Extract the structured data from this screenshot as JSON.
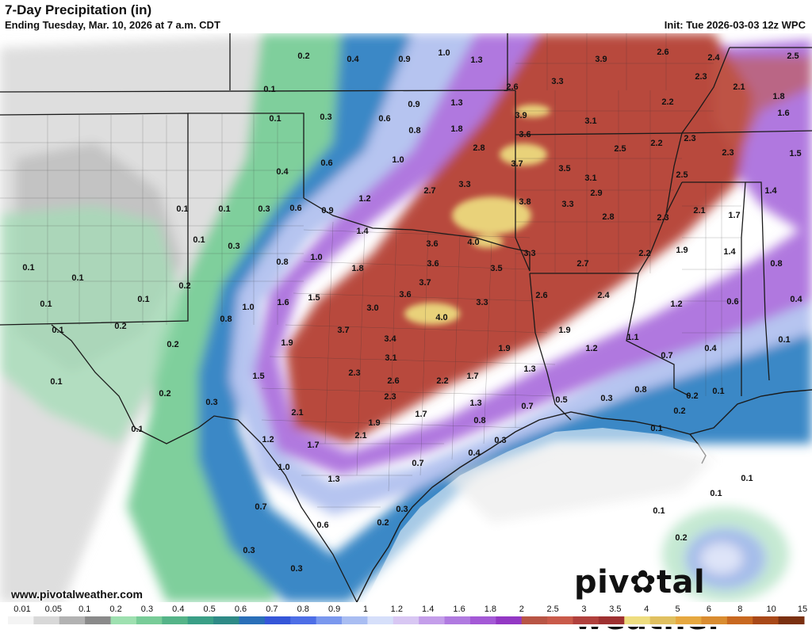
{
  "header": {
    "title": "7-Day Precipitation (in)",
    "subtitle": "Ending Tuesday, Mar. 10, 2026 at 7 a.m. CDT",
    "init": "Init: Tue 2026-03-03 12z WPC"
  },
  "footer": {
    "url": "www.pivotalweather.com",
    "brand_left": "piv",
    "brand_right": "tal weather"
  },
  "legend": {
    "ticks": [
      "0.01",
      "0.05",
      "0.1",
      "0.2",
      "0.3",
      "0.4",
      "0.5",
      "0.6",
      "0.7",
      "0.8",
      "0.9",
      "1",
      "1.2",
      "1.4",
      "1.6",
      "1.8",
      "2",
      "2.5",
      "3",
      "3.5",
      "4",
      "5",
      "6",
      "8",
      "10",
      "15"
    ],
    "colors": [
      "#f4f4f4",
      "#d8d8d8",
      "#b2b2b2",
      "#8a8a8a",
      "#9ee0b0",
      "#78cc98",
      "#55b488",
      "#3a9f86",
      "#2e8a86",
      "#2a6fb8",
      "#3556d8",
      "#4d6ee6",
      "#7a98ee",
      "#a9bdf2",
      "#d6dffa",
      "#d8c7f3",
      "#c49eea",
      "#b07ae0",
      "#a459d6",
      "#9338c4",
      "#b85545",
      "#c95a4a",
      "#b0403c",
      "#9e3030",
      "#eedd80",
      "#e0c060",
      "#e6a840",
      "#d98c30",
      "#c86820",
      "#a84818",
      "#7a3010"
    ]
  },
  "map_labels": [
    {
      "v": "0.2"
    },
    {
      "v": "0.4"
    },
    {
      "v": "0.9"
    },
    {
      "v": "1.0"
    },
    {
      "v": "1.3"
    },
    {
      "v": "3.9"
    },
    {
      "v": "2.6"
    },
    {
      "v": "2.4"
    },
    {
      "v": "2.5"
    },
    {
      "v": "0.1"
    },
    {
      "v": "2.6"
    },
    {
      "v": "3.3"
    },
    {
      "v": "2.3"
    },
    {
      "v": "2.1"
    },
    {
      "v": "1.8"
    },
    {
      "v": "0.1"
    },
    {
      "v": "0.3"
    },
    {
      "v": "0.6"
    },
    {
      "v": "0.9"
    },
    {
      "v": "1.3"
    },
    {
      "v": "3.9"
    },
    {
      "v": "3.1"
    },
    {
      "v": "2.2"
    },
    {
      "v": "1.6"
    },
    {
      "v": "0.8"
    },
    {
      "v": "1.8"
    },
    {
      "v": "3.6"
    },
    {
      "v": "2.3"
    },
    {
      "v": "2.8"
    },
    {
      "v": "2.5"
    },
    {
      "v": "2.2"
    },
    {
      "v": "2.3"
    },
    {
      "v": "1.5"
    },
    {
      "v": "0.6"
    },
    {
      "v": "1.0"
    },
    {
      "v": "3.7"
    },
    {
      "v": "3.5"
    },
    {
      "v": "0.4"
    },
    {
      "v": "3.1"
    },
    {
      "v": "2.5"
    },
    {
      "v": "2.7"
    },
    {
      "v": "3.3"
    },
    {
      "v": "2.9"
    },
    {
      "v": "1.4"
    },
    {
      "v": "1.2"
    },
    {
      "v": "3.8"
    },
    {
      "v": "3.3"
    },
    {
      "v": "0.1"
    },
    {
      "v": "0.1"
    },
    {
      "v": "0.3"
    },
    {
      "v": "0.6"
    },
    {
      "v": "0.9"
    },
    {
      "v": "2.8"
    },
    {
      "v": "2.3"
    },
    {
      "v": "2.1"
    },
    {
      "v": "1.7"
    },
    {
      "v": "1.4"
    },
    {
      "v": "0.1"
    },
    {
      "v": "0.3"
    },
    {
      "v": "3.6"
    },
    {
      "v": "4.0"
    },
    {
      "v": "1.9"
    },
    {
      "v": "1.4"
    },
    {
      "v": "3.3"
    },
    {
      "v": "2.2"
    },
    {
      "v": "0.8"
    },
    {
      "v": "1.0"
    },
    {
      "v": "3.6"
    },
    {
      "v": "2.7"
    },
    {
      "v": "0.8"
    },
    {
      "v": "0.1"
    },
    {
      "v": "1.8"
    },
    {
      "v": "3.5"
    },
    {
      "v": "0.1"
    },
    {
      "v": "0.2"
    },
    {
      "v": "3.7"
    },
    {
      "v": "0.1"
    },
    {
      "v": "1.6"
    },
    {
      "v": "1.5"
    },
    {
      "v": "3.6"
    },
    {
      "v": "2.6"
    },
    {
      "v": "2.4"
    },
    {
      "v": "0.1"
    },
    {
      "v": "3.3"
    },
    {
      "v": "1.2"
    },
    {
      "v": "0.6"
    },
    {
      "v": "0.4"
    },
    {
      "v": "1.0"
    },
    {
      "v": "3.0"
    },
    {
      "v": "0.8"
    },
    {
      "v": "4.0"
    },
    {
      "v": "0.1"
    },
    {
      "v": "0.2"
    },
    {
      "v": "3.7"
    },
    {
      "v": "1.9"
    },
    {
      "v": "3.4"
    },
    {
      "v": "1.1"
    },
    {
      "v": "0.1"
    },
    {
      "v": "0.2"
    },
    {
      "v": "1.9"
    },
    {
      "v": "1.9"
    },
    {
      "v": "1.2"
    },
    {
      "v": "0.4"
    },
    {
      "v": "3.1"
    },
    {
      "v": "0.7"
    },
    {
      "v": "1.3"
    },
    {
      "v": "0.1"
    },
    {
      "v": "1.5"
    },
    {
      "v": "2.3"
    },
    {
      "v": "1.7"
    },
    {
      "v": "2.6"
    },
    {
      "v": "2.2"
    },
    {
      "v": "0.2"
    },
    {
      "v": "0.8"
    },
    {
      "v": "0.2"
    },
    {
      "v": "0.1"
    },
    {
      "v": "0.3"
    },
    {
      "v": "2.3"
    },
    {
      "v": "1.3"
    },
    {
      "v": "0.5"
    },
    {
      "v": "0.3"
    },
    {
      "v": "0.7"
    },
    {
      "v": "0.2"
    },
    {
      "v": "2.1"
    },
    {
      "v": "1.7"
    },
    {
      "v": "1.9"
    },
    {
      "v": "0.8"
    },
    {
      "v": "0.1"
    },
    {
      "v": "2.1"
    },
    {
      "v": "0.3"
    },
    {
      "v": "0.1"
    },
    {
      "v": "1.2"
    },
    {
      "v": "1.7"
    },
    {
      "v": "0.4"
    },
    {
      "v": "1.0"
    },
    {
      "v": "0.7"
    },
    {
      "v": "1.3"
    },
    {
      "v": "0.1"
    },
    {
      "v": "0.1"
    },
    {
      "v": "0.7"
    },
    {
      "v": "0.3"
    },
    {
      "v": "0.1"
    },
    {
      "v": "0.6"
    },
    {
      "v": "0.2"
    },
    {
      "v": "0.2"
    },
    {
      "v": "0.3"
    },
    {
      "v": "0.3"
    }
  ]
}
